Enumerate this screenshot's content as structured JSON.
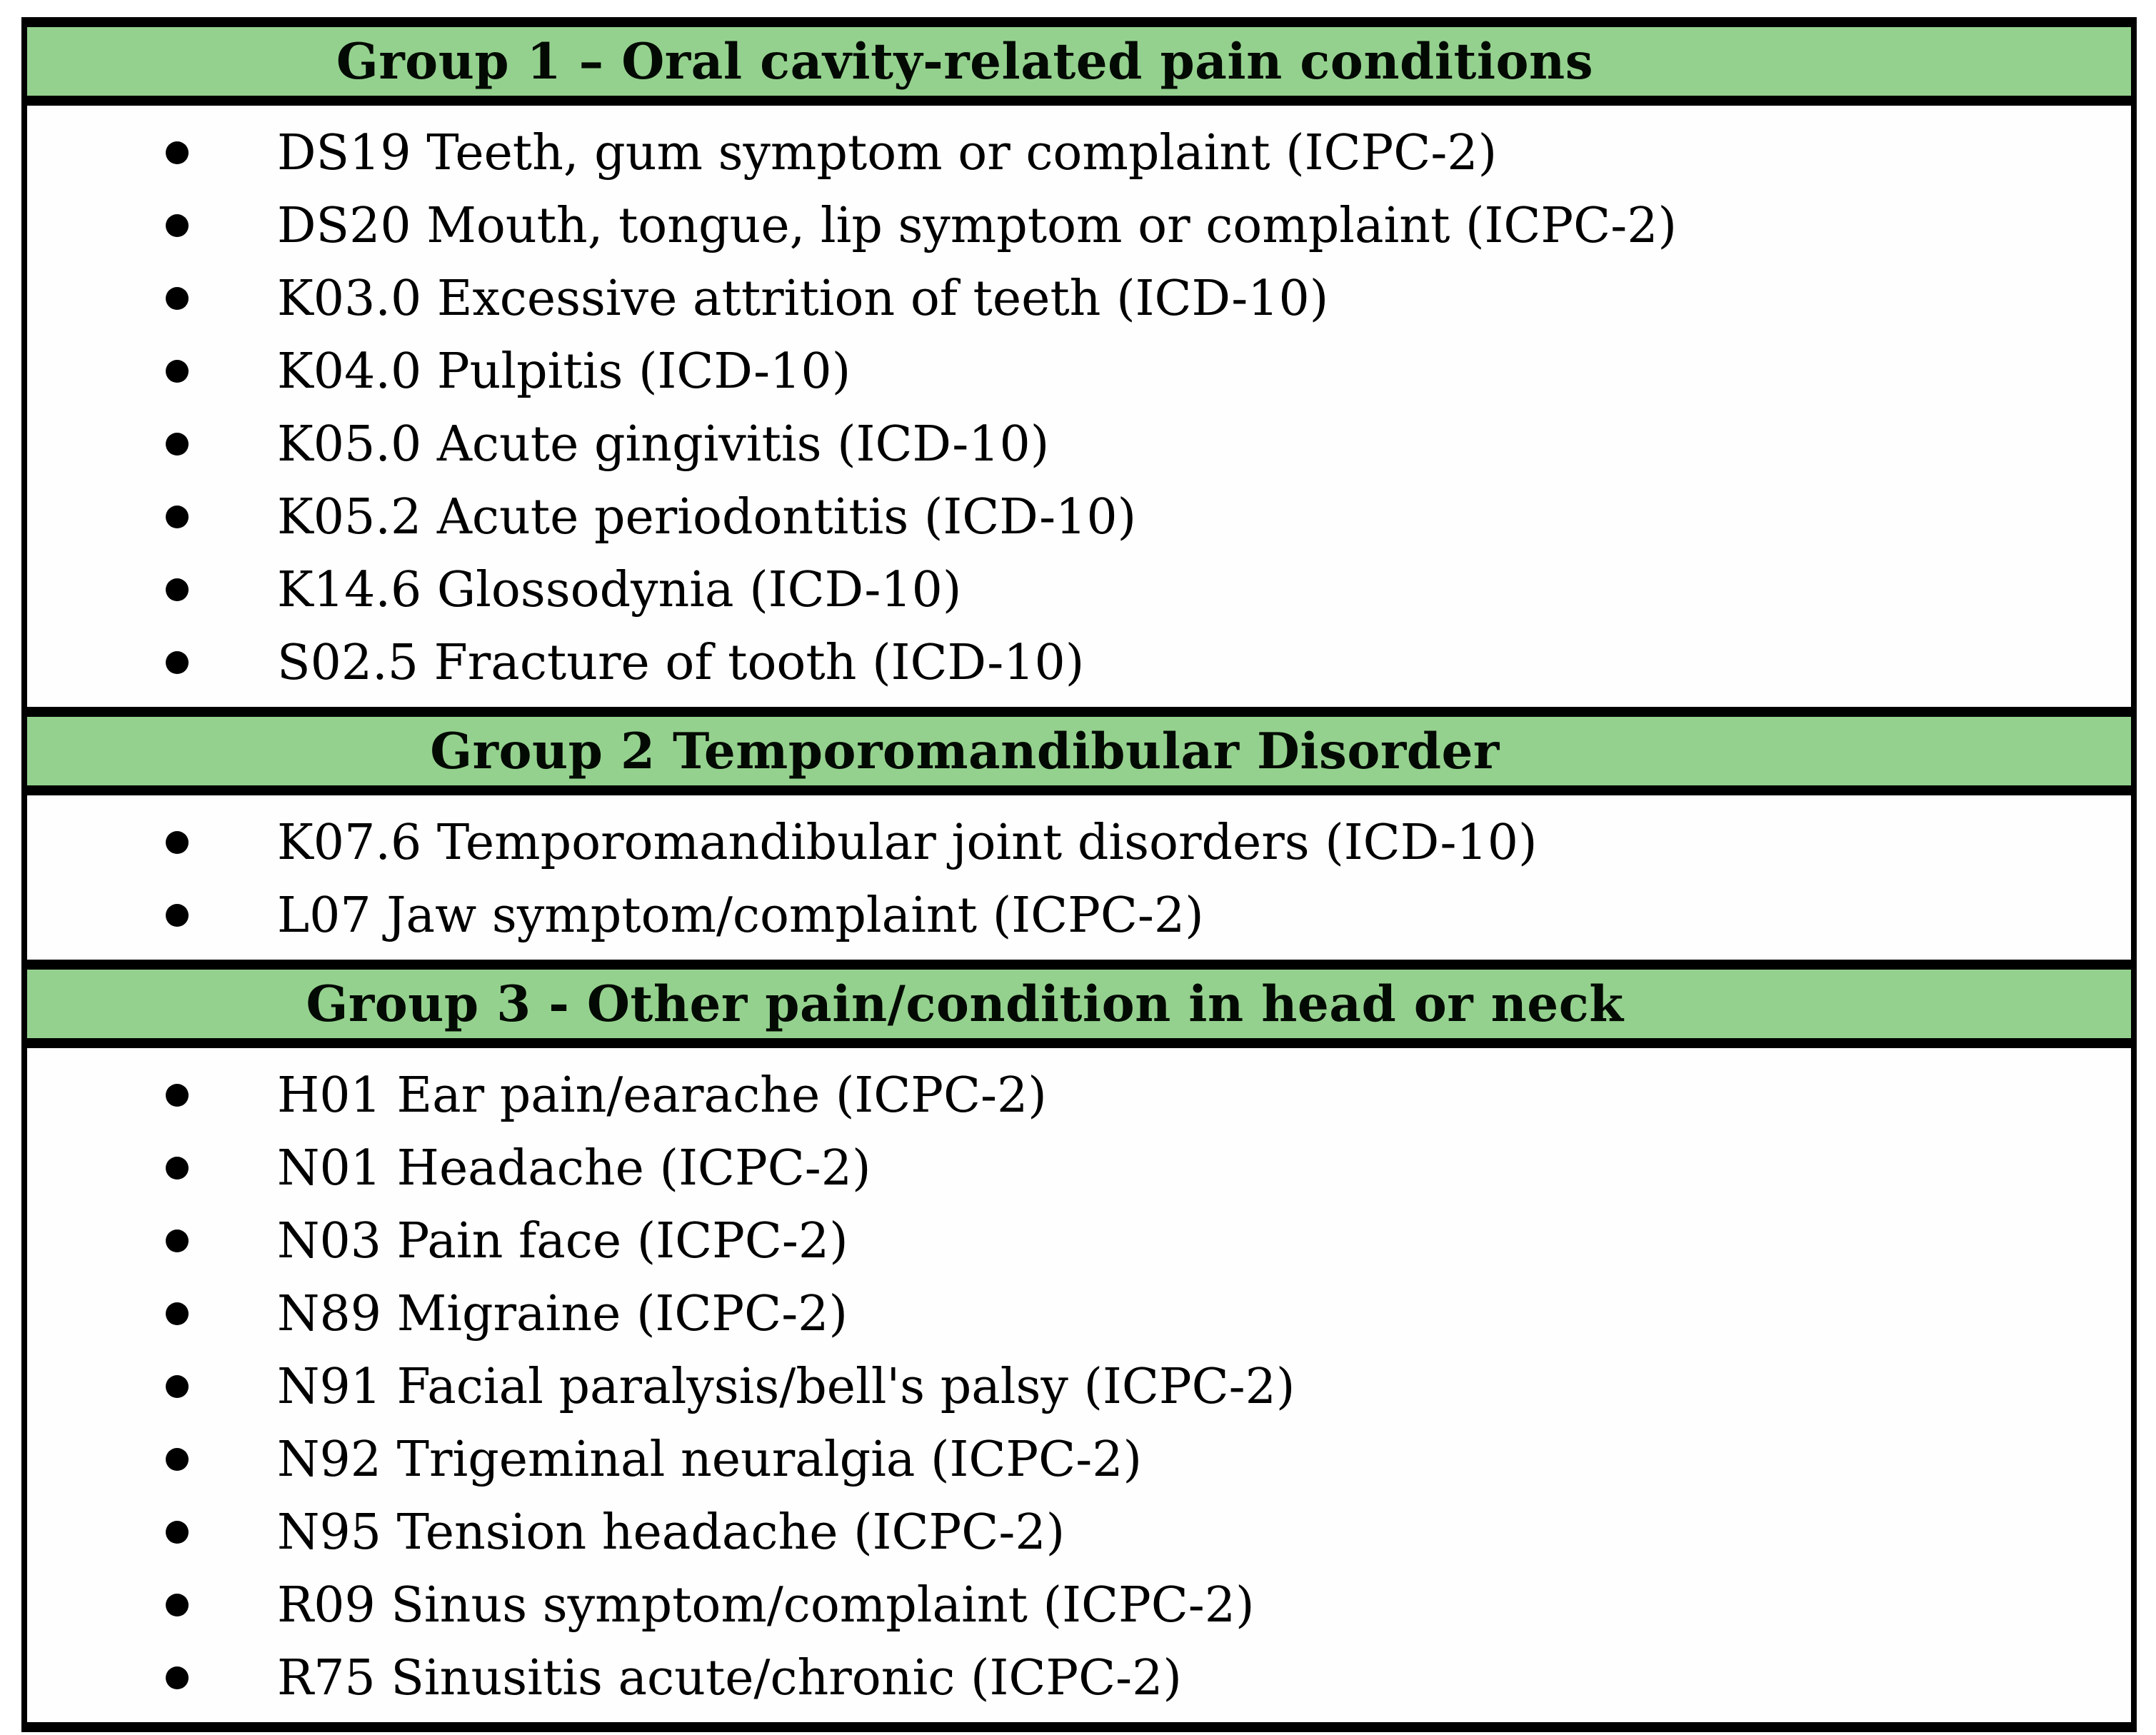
{
  "table": {
    "groups": [
      {
        "header": "Group 1 – Oral cavity-related pain conditions",
        "items": [
          "DS19 Teeth, gum symptom or complaint (ICPC-2)",
          "DS20 Mouth, tongue, lip symptom or complaint (ICPC-2)",
          "K03.0 Excessive attrition of teeth (ICD-10)",
          "K04.0 Pulpitis (ICD-10)",
          "K05.0 Acute gingivitis (ICD-10)",
          "K05.2 Acute periodontitis (ICD-10)",
          "K14.6 Glossodynia (ICD-10)",
          "S02.5 Fracture of tooth (ICD-10)"
        ]
      },
      {
        "header": "Group 2 Temporomandibular Disorder",
        "items": [
          "K07.6 Temporomandibular joint disorders (ICD-10)",
          "L07 Jaw symptom/complaint (ICPC-2)"
        ]
      },
      {
        "header": "Group 3 - Other pain/condition in head or neck",
        "items": [
          "H01 Ear pain/earache (ICPC-2)",
          "N01 Headache (ICPC-2)",
          "N03 Pain face (ICPC-2)",
          "N89 Migraine (ICPC-2)",
          "N91 Facial paralysis/bell's palsy (ICPC-2)",
          "N92 Trigeminal neuralgia (ICPC-2)",
          "N95 Tension headache (ICPC-2)",
          "R09 Sinus symptom/complaint (ICPC-2)",
          "R75 Sinusitis acute/chronic (ICPC-2)"
        ]
      }
    ]
  },
  "colors": {
    "header_background": "#94d18e",
    "border": "#000000",
    "text": "#000000",
    "page_background": "#ffffff"
  }
}
